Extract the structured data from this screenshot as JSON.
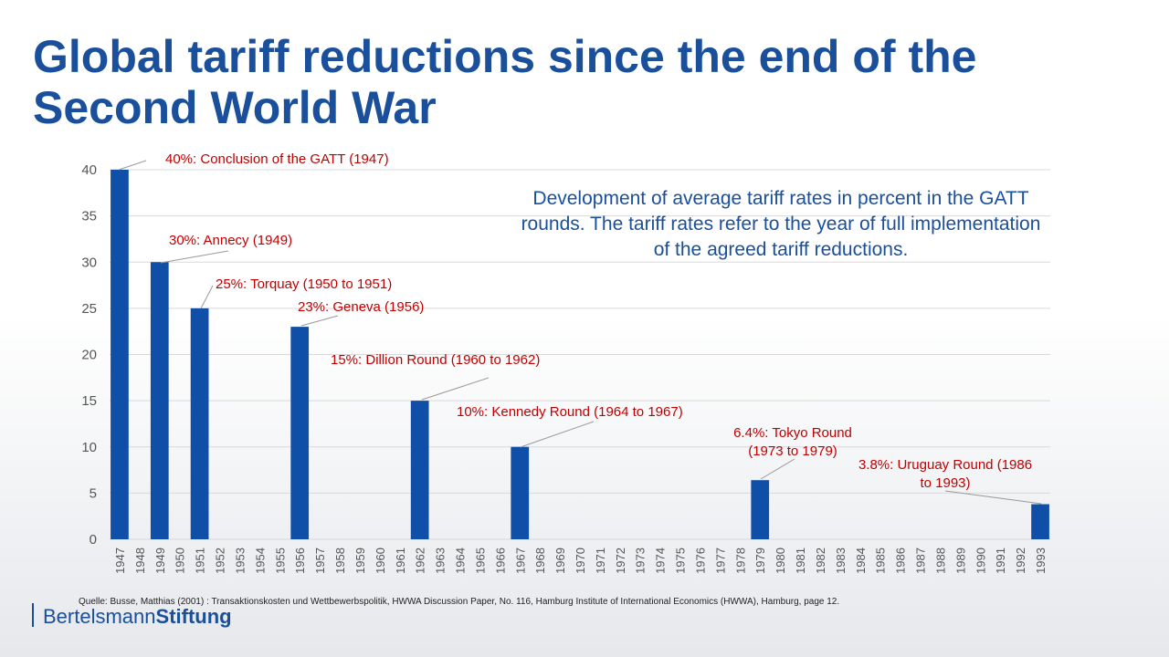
{
  "title": "Global tariff reductions since the end of the Second World War",
  "subtitle": "Development of average tariff rates in percent in the GATT rounds. The tariff rates refer to the year of full implementation of the agreed tariff reductions.",
  "source": "Quelle: Busse, Matthias (2001) : Transaktionskosten und Wettbewerbspolitik, HWWA Discussion Paper, No. 116, Hamburg Institute of International Economics (HWWA), Hamburg, page 12.",
  "logo": {
    "part1": "Bertelsmann",
    "part2": "Stiftung"
  },
  "colors": {
    "title": "#1a4f9c",
    "bar": "#0f4fa8",
    "annotation": "#c00000",
    "grid": "#d9d9d9"
  },
  "chart_data": {
    "type": "bar",
    "categories": [
      "1947",
      "1948",
      "1949",
      "1950",
      "1951",
      "1952",
      "1953",
      "1954",
      "1955",
      "1956",
      "1957",
      "1958",
      "1959",
      "1960",
      "1961",
      "1962",
      "1963",
      "1964",
      "1965",
      "1966",
      "1967",
      "1968",
      "1969",
      "1970",
      "1971",
      "1972",
      "1973",
      "1974",
      "1975",
      "1976",
      "1977",
      "1978",
      "1979",
      "1980",
      "1981",
      "1982",
      "1983",
      "1984",
      "1985",
      "1986",
      "1987",
      "1988",
      "1989",
      "1990",
      "1991",
      "1992",
      "1993"
    ],
    "values": [
      40,
      0,
      30,
      0,
      25,
      0,
      0,
      0,
      0,
      23,
      0,
      0,
      0,
      0,
      0,
      15,
      0,
      0,
      0,
      0,
      10,
      0,
      0,
      0,
      0,
      0,
      0,
      0,
      0,
      0,
      0,
      0,
      6.4,
      0,
      0,
      0,
      0,
      0,
      0,
      0,
      0,
      0,
      0,
      0,
      0,
      0,
      3.8
    ],
    "ylim": [
      0,
      40
    ],
    "yticks": [
      0,
      5,
      10,
      15,
      20,
      25,
      30,
      35,
      40
    ],
    "grid": true,
    "annotations": [
      {
        "text": [
          "40%: Conclusion of the GATT (1947)"
        ],
        "category": "1947",
        "value": 40
      },
      {
        "text": [
          "30%: Annecy (1949)"
        ],
        "category": "1949",
        "value": 30
      },
      {
        "text": [
          "25%: Torquay (1950 to 1951)"
        ],
        "category": "1951",
        "value": 25
      },
      {
        "text": [
          "23%: Geneva (1956)"
        ],
        "category": "1956",
        "value": 23
      },
      {
        "text": [
          "15%: Dillion Round (1960 to 1962)"
        ],
        "category": "1962",
        "value": 15
      },
      {
        "text": [
          "10%: Kennedy Round (1964 to 1967)"
        ],
        "category": "1967",
        "value": 10
      },
      {
        "text": [
          "6.4%: Tokyo Round",
          "(1973 to 1979)"
        ],
        "category": "1979",
        "value": 6.4
      },
      {
        "text": [
          "3.8%: Uruguay Round (1986",
          "to 1993)"
        ],
        "category": "1993",
        "value": 3.8
      }
    ]
  }
}
